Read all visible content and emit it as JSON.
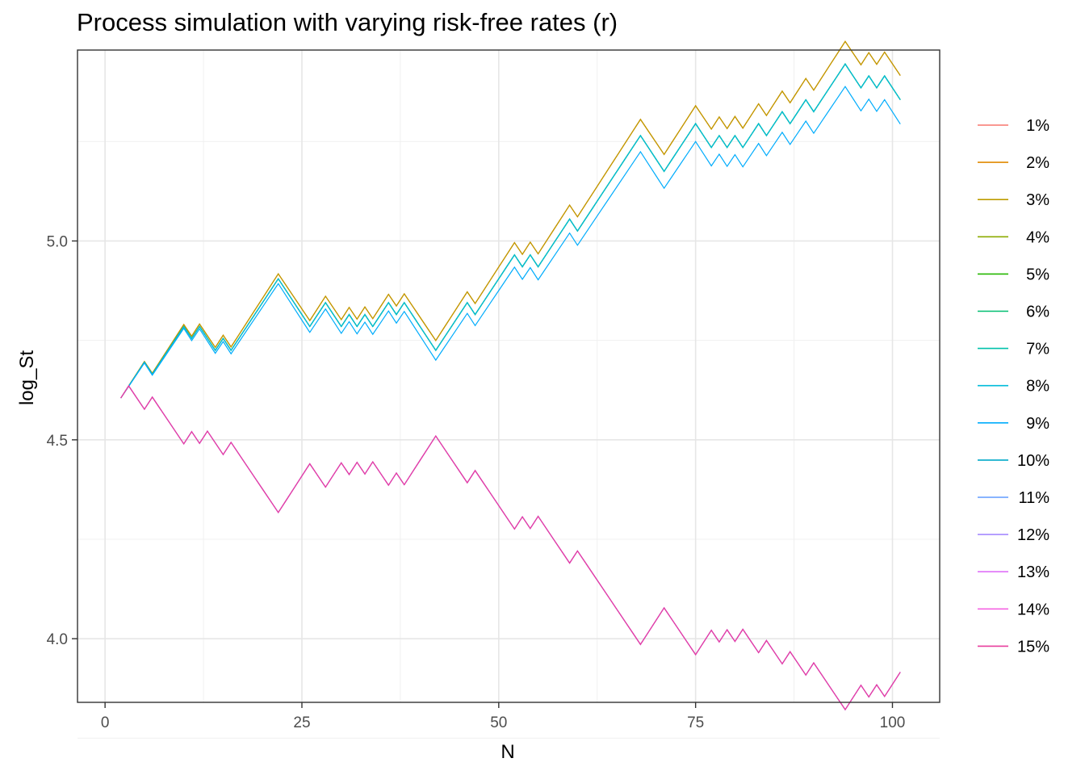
{
  "chart_data": {
    "type": "line",
    "title": "Process simulation with varying risk-free rates (r)",
    "xlabel": "N",
    "ylabel": "log_St",
    "xlim": [
      -3.5,
      106
    ],
    "ylim": [
      3.84,
      5.48
    ],
    "x_ticks": [
      0,
      25,
      50,
      75,
      100
    ],
    "y_ticks": [
      4.0,
      4.5,
      5.0
    ],
    "y_tick_labels": [
      "4.0",
      "4.5",
      "5.0"
    ],
    "grid": true,
    "legend_position": "right",
    "step_size": 0.03,
    "start": {
      "x": 2,
      "y": 4.605
    },
    "bundles": [
      {
        "name": "up",
        "x_start": 2,
        "x_end": 101,
        "moves": "UUUDUUUUDUDDUDUUUUUUDDDDUUDDUDUDUUDUDDDDUUUUDUUUUUDUDUUUUDUUUUUUUUDDDUUUUDDUDUDUUDUUDUUDUUUUDDUDUDD",
        "deltas": [
          0.061,
          0.061,
          0.061,
          0.0,
          0.0,
          0.0,
          0.0,
          0.0,
          -0.061,
          -0.061,
          -0.061,
          -0.061,
          -0.061,
          -0.061,
          -0.061
        ]
      },
      {
        "name": "down",
        "x_start": 2,
        "x_end": 101,
        "moves": "UDDUDDDDUDUDDUDDDDDDUUUUDDUUDUDUDDUDUUUUDDDDUDDDDDUDUDDDDUDDDDDDDDUUUDDDDUUDUDUDDUDDUDDUDDDDUUDUDUU",
        "deltas": [
          0.061,
          0.061,
          0.061,
          0.061,
          0.061,
          0.061,
          0.061,
          0.061,
          0.061,
          0.061,
          0.061,
          0.061,
          0.0,
          0.0,
          -0.061
        ]
      }
    ],
    "series": [
      {
        "name": "1%",
        "color": "#F8766D",
        "bundle": "up"
      },
      {
        "name": "2%",
        "color": "#E18A00",
        "bundle": "up"
      },
      {
        "name": "3%",
        "color": "#BE9C00",
        "bundle": "up"
      },
      {
        "name": "4%",
        "color": "#8CAB00",
        "bundle": "up"
      },
      {
        "name": "5%",
        "color": "#24B700",
        "bundle": "up"
      },
      {
        "name": "6%",
        "color": "#00BE70",
        "bundle": "up"
      },
      {
        "name": "7%",
        "color": "#00C1AB",
        "bundle": "up"
      },
      {
        "name": "8%",
        "color": "#00BBDA",
        "bundle": "up"
      },
      {
        "name": "9%",
        "color": "#00ACFC",
        "bundle": "up"
      },
      {
        "name": "10%",
        "color": "#00A9C9",
        "bundle": "down"
      },
      {
        "name": "11%",
        "color": "#619CFF",
        "bundle": "down"
      },
      {
        "name": "12%",
        "color": "#A58AFF",
        "bundle": "down"
      },
      {
        "name": "13%",
        "color": "#DF70F8",
        "bundle": "down"
      },
      {
        "name": "14%",
        "color": "#F564E3",
        "bundle": "down"
      },
      {
        "name": "15%",
        "color": "#E83E9E",
        "bundle": "down"
      }
    ]
  }
}
